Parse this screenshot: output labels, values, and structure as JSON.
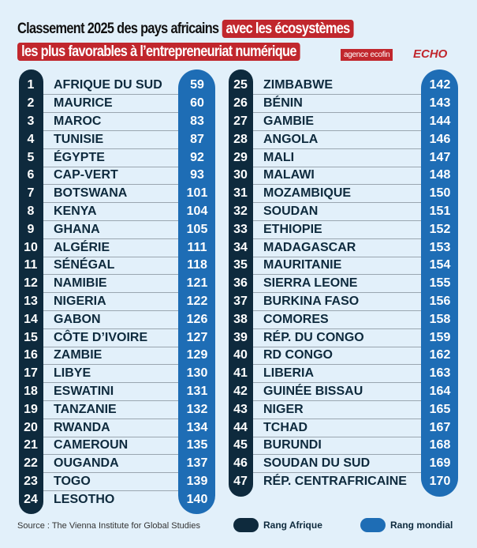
{
  "header": {
    "title_plain": "Classement 2025 des pays africains",
    "title_hl1": "avec les écosystèmes",
    "title_hl2": "les plus favorables à l’entrepreneuriat numérique",
    "logo1": "agence ecofin",
    "logo2": "ECHO"
  },
  "rows": [
    {
      "ra": "1",
      "name": "AFRIQUE DU SUD",
      "rw": "59"
    },
    {
      "ra": "2",
      "name": "MAURICE",
      "rw": "60"
    },
    {
      "ra": "3",
      "name": "MAROC",
      "rw": "83"
    },
    {
      "ra": "4",
      "name": "TUNISIE",
      "rw": "87"
    },
    {
      "ra": "5",
      "name": "ÉGYPTE",
      "rw": "92"
    },
    {
      "ra": "6",
      "name": "CAP-VERT",
      "rw": "93"
    },
    {
      "ra": "7",
      "name": "BOTSWANA",
      "rw": "101"
    },
    {
      "ra": "8",
      "name": "KENYA",
      "rw": "104"
    },
    {
      "ra": "9",
      "name": "GHANA",
      "rw": "105"
    },
    {
      "ra": "10",
      "name": "ALGÉRIE",
      "rw": "111"
    },
    {
      "ra": "11",
      "name": "SÉNÉGAL",
      "rw": "118"
    },
    {
      "ra": "12",
      "name": "NAMIBIE",
      "rw": "121"
    },
    {
      "ra": "13",
      "name": "NIGERIA",
      "rw": "122"
    },
    {
      "ra": "14",
      "name": "GABON",
      "rw": "126"
    },
    {
      "ra": "15",
      "name": "CÔTE D’IVOIRE",
      "rw": "127"
    },
    {
      "ra": "16",
      "name": "ZAMBIE",
      "rw": "129"
    },
    {
      "ra": "17",
      "name": "LIBYE",
      "rw": "130"
    },
    {
      "ra": "18",
      "name": "ESWATINI",
      "rw": "131"
    },
    {
      "ra": "19",
      "name": "TANZANIE",
      "rw": "132"
    },
    {
      "ra": "20",
      "name": "RWANDA",
      "rw": "134"
    },
    {
      "ra": "21",
      "name": "CAMEROUN",
      "rw": "135"
    },
    {
      "ra": "22",
      "name": "OUGANDA",
      "rw": "137"
    },
    {
      "ra": "23",
      "name": "TOGO",
      "rw": "139"
    },
    {
      "ra": "24",
      "name": "LESOTHO",
      "rw": "140"
    },
    {
      "ra": "25",
      "name": "ZIMBABWE",
      "rw": "142"
    },
    {
      "ra": "26",
      "name": "BÉNIN",
      "rw": "143"
    },
    {
      "ra": "27",
      "name": "GAMBIE",
      "rw": "144"
    },
    {
      "ra": "28",
      "name": "ANGOLA",
      "rw": "146"
    },
    {
      "ra": "29",
      "name": "MALI",
      "rw": "147"
    },
    {
      "ra": "30",
      "name": "MALAWI",
      "rw": "148"
    },
    {
      "ra": "31",
      "name": "MOZAMBIQUE",
      "rw": "150"
    },
    {
      "ra": "32",
      "name": "SOUDAN",
      "rw": "151"
    },
    {
      "ra": "33",
      "name": "ETHIOPIE",
      "rw": "152"
    },
    {
      "ra": "34",
      "name": "MADAGASCAR",
      "rw": "153"
    },
    {
      "ra": "35",
      "name": "MAURITANIE",
      "rw": "154"
    },
    {
      "ra": "36",
      "name": "SIERRA LEONE",
      "rw": "155"
    },
    {
      "ra": "37",
      "name": "BURKINA FASO",
      "rw": "156"
    },
    {
      "ra": "38",
      "name": "COMORES",
      "rw": "158"
    },
    {
      "ra": "39",
      "name": "RÉP. DU CONGO",
      "rw": "159"
    },
    {
      "ra": "40",
      "name": "RD CONGO",
      "rw": "162"
    },
    {
      "ra": "41",
      "name": "LIBERIA",
      "rw": "163"
    },
    {
      "ra": "42",
      "name": "GUINÉE BISSAU",
      "rw": "164"
    },
    {
      "ra": "43",
      "name": "NIGER",
      "rw": "165"
    },
    {
      "ra": "44",
      "name": "TCHAD",
      "rw": "167"
    },
    {
      "ra": "45",
      "name": "BURUNDI",
      "rw": "168"
    },
    {
      "ra": "46",
      "name": "SOUDAN DU SUD",
      "rw": "169"
    },
    {
      "ra": "47",
      "name": "RÉP. CENTRAFRICAINE",
      "rw": "170"
    }
  ],
  "footer": {
    "source": "Source : The Vienna Institute for Global Studies",
    "legend_africa": "Rang Afrique",
    "legend_world": "Rang mondial"
  },
  "colors": {
    "dark": "#0e2a3d",
    "blue": "#1e6db5",
    "red": "#c1272d"
  }
}
